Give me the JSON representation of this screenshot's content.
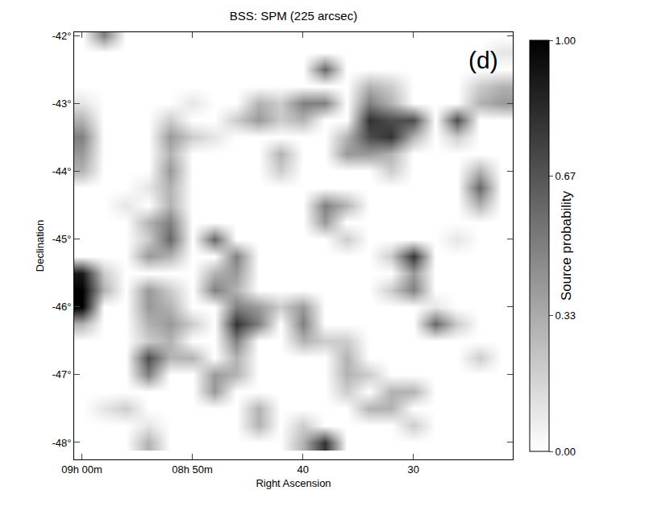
{
  "chart_data": {
    "type": "heatmap",
    "title": "BSS: SPM (225 arcsec)",
    "x_label": "Right Ascension",
    "y_label": "Declination",
    "annotation": "(d)",
    "x": [
      60,
      58,
      56,
      54,
      52,
      50,
      48,
      46,
      44,
      42,
      40,
      38,
      36,
      34,
      32,
      30,
      28,
      26,
      24,
      22
    ],
    "y": [
      -42.0,
      -42.25,
      -42.5,
      -42.75,
      -43.0,
      -43.25,
      -43.5,
      -43.75,
      -44.0,
      -44.25,
      -44.5,
      -44.75,
      -45.0,
      -45.25,
      -45.5,
      -45.75,
      -46.0,
      -46.25,
      -46.5,
      -46.75,
      -47.0,
      -47.25,
      -47.5,
      -47.75,
      -48.0
    ],
    "z": [
      [
        0,
        0.5,
        0,
        0,
        0,
        0,
        0,
        0,
        0,
        0,
        0,
        0,
        0,
        0,
        0,
        0,
        0,
        0,
        0,
        0
      ],
      [
        0,
        0,
        0,
        0,
        0,
        0,
        0,
        0,
        0,
        0,
        0,
        0,
        0,
        0,
        0,
        0,
        0,
        0,
        0,
        0.1
      ],
      [
        0,
        0,
        0,
        0,
        0,
        0,
        0,
        0,
        0,
        0,
        0,
        0.6,
        0,
        0,
        0,
        0,
        0,
        0,
        0,
        0
      ],
      [
        0,
        0,
        0,
        0,
        0,
        0,
        0,
        0,
        0,
        0,
        0,
        0,
        0,
        0.3,
        0.2,
        0,
        0,
        0,
        0.2,
        0.3
      ],
      [
        0.1,
        0,
        0,
        0,
        0,
        0.1,
        0,
        0,
        0.3,
        0.2,
        0.5,
        0.5,
        0,
        0.5,
        0.3,
        0,
        0,
        0,
        0.3,
        0.4
      ],
      [
        0.3,
        0,
        0,
        0,
        0.2,
        0,
        0,
        0.2,
        0.4,
        0.2,
        0.3,
        0,
        0,
        0.8,
        0.7,
        0.7,
        0,
        0.7,
        0,
        0
      ],
      [
        0.5,
        0,
        0,
        0,
        0.4,
        0.2,
        0.1,
        0,
        0,
        0,
        0,
        0,
        0.3,
        0.7,
        0.8,
        0.3,
        0,
        0.2,
        0,
        0
      ],
      [
        0.4,
        0,
        0,
        0,
        0.3,
        0,
        0,
        0,
        0,
        0.3,
        0,
        0,
        0.4,
        0.4,
        0.3,
        0,
        0,
        0,
        0,
        0
      ],
      [
        0.3,
        0,
        0,
        0,
        0.4,
        0,
        0,
        0,
        0,
        0.2,
        0,
        0,
        0,
        0,
        0.2,
        0,
        0,
        0,
        0.3,
        0
      ],
      [
        0,
        0,
        0,
        0.1,
        0.3,
        0,
        0,
        0,
        0,
        0,
        0,
        0,
        0,
        0,
        0,
        0,
        0,
        0,
        0.6,
        0
      ],
      [
        0,
        0,
        0.1,
        0,
        0.3,
        0,
        0,
        0,
        0,
        0,
        0,
        0.5,
        0.3,
        0,
        0,
        0,
        0,
        0,
        0.3,
        0
      ],
      [
        0,
        0,
        0,
        0.3,
        0.5,
        0,
        0,
        0,
        0,
        0,
        0,
        0.4,
        0,
        0,
        0,
        0,
        0,
        0,
        0,
        0
      ],
      [
        0,
        0,
        0,
        0.2,
        0.6,
        0,
        0.6,
        0,
        0,
        0,
        0,
        0,
        0.2,
        0,
        0,
        0,
        0,
        0.1,
        0,
        0
      ],
      [
        0,
        0,
        0,
        0.4,
        0.3,
        0,
        0,
        0.5,
        0,
        0,
        0,
        0,
        0,
        0,
        0.2,
        0.8,
        0,
        0,
        0,
        0
      ],
      [
        0.9,
        0.2,
        0,
        0,
        0,
        0,
        0.3,
        0.4,
        0,
        0,
        0,
        0,
        0,
        0,
        0,
        0.4,
        0,
        0,
        0,
        0
      ],
      [
        1.0,
        0.3,
        0,
        0.4,
        0.2,
        0,
        0.5,
        0.3,
        0,
        0,
        0,
        0,
        0,
        0,
        0.2,
        0.5,
        0,
        0,
        0,
        0
      ],
      [
        1.0,
        0,
        0,
        0.4,
        0.3,
        0,
        0,
        0.5,
        0.4,
        0.2,
        0.4,
        0,
        0,
        0,
        0,
        0,
        0.1,
        0,
        0,
        0
      ],
      [
        0.3,
        0,
        0,
        0.3,
        0.4,
        0.2,
        0,
        0.8,
        0.5,
        0,
        0.5,
        0,
        0,
        0,
        0,
        0,
        0.6,
        0.2,
        0,
        0
      ],
      [
        0,
        0,
        0,
        0.2,
        0.3,
        0,
        0,
        0.5,
        0,
        0,
        0.3,
        0.2,
        0.2,
        0,
        0,
        0,
        0,
        0,
        0,
        0
      ],
      [
        0,
        0,
        0,
        0.7,
        0.3,
        0.3,
        0,
        0.3,
        0,
        0,
        0,
        0,
        0.3,
        0,
        0,
        0,
        0,
        0,
        0.2,
        0
      ],
      [
        0,
        0,
        0,
        0.5,
        0,
        0,
        0.4,
        0.3,
        0,
        0,
        0,
        0,
        0.3,
        0.2,
        0,
        0,
        0,
        0,
        0,
        0
      ],
      [
        0,
        0,
        0,
        0,
        0,
        0,
        0.4,
        0,
        0,
        0,
        0,
        0,
        0.2,
        0,
        0.3,
        0.3,
        0,
        0,
        0,
        0
      ],
      [
        0,
        0.1,
        0.2,
        0,
        0,
        0,
        0,
        0,
        0.3,
        0,
        0,
        0,
        0,
        0.3,
        0.3,
        0,
        0,
        0,
        0,
        0
      ],
      [
        0,
        0,
        0,
        0.1,
        0,
        0,
        0,
        0,
        0.3,
        0,
        0.2,
        0,
        0,
        0,
        0,
        0.2,
        0,
        0,
        0,
        0
      ],
      [
        0,
        0,
        0,
        0.3,
        0,
        0,
        0,
        0,
        0,
        0,
        0.3,
        0.8,
        0,
        0,
        0,
        0,
        0,
        0,
        0,
        0
      ]
    ],
    "xlim": [
      60.7,
      21.0
    ],
    "ylim": [
      -48.25,
      -41.95
    ],
    "xticks": [
      {
        "value": 60,
        "label": "09h 00m"
      },
      {
        "value": 50,
        "label": "08h 50m"
      },
      40,
      30
    ],
    "yticks": [
      {
        "value": -42,
        "label": "-42°"
      },
      {
        "value": -43,
        "label": "-43°"
      },
      {
        "value": -44,
        "label": "-44°"
      },
      {
        "value": -45,
        "label": "-45°"
      },
      {
        "value": -46,
        "label": "-46°"
      },
      {
        "value": -47,
        "label": "-47°"
      },
      {
        "value": -48,
        "label": "-48°"
      }
    ],
    "colorbar": {
      "title": "Source probability",
      "range": [
        0,
        1
      ],
      "ticks": [
        {
          "value": 0,
          "label": "0.00"
        },
        {
          "value": 0.33,
          "label": "0.33"
        },
        {
          "value": 0.67,
          "label": "0.67"
        },
        {
          "value": 1,
          "label": "1.00"
        }
      ]
    }
  }
}
